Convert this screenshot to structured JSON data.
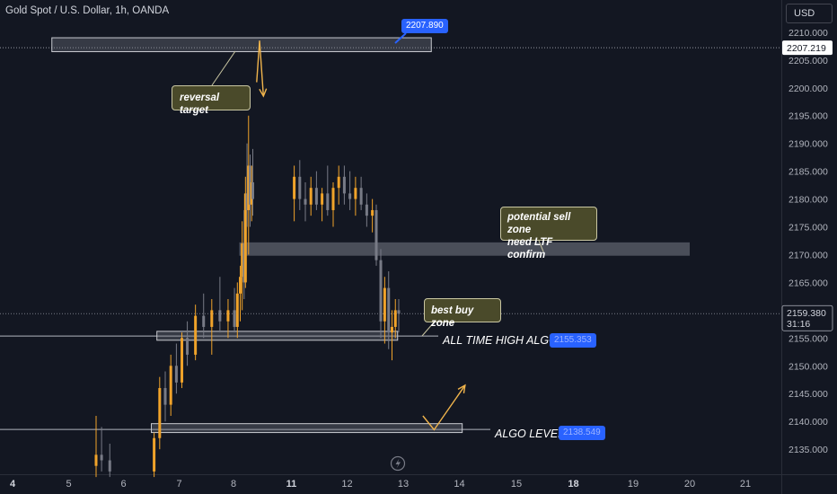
{
  "header": {
    "title": "Gold Spot / U.S. Dollar, 1h, OANDA"
  },
  "toolbar": {
    "currency_label": "USD"
  },
  "price_axis": {
    "current_price": "2159.380",
    "countdown": "31:16",
    "crosshair_price": "2207.219"
  },
  "annotations": {
    "reversal_target": "reversal target",
    "sell_zone_line1": "potential sell zone",
    "sell_zone_line2": "need LTF confirm",
    "best_buy_zone": "best buy zone",
    "ath_algo_label": "ALL TIME HIGH ALGO",
    "ath_algo_value": "2155.353",
    "algo_level_label": "ALGO LEVEL",
    "algo_level_value": "2138.549",
    "target_value": "2207.890"
  },
  "colors": {
    "background": "#131722",
    "candle_up": "#f0a32a",
    "candle_down": "#787b86",
    "zone_fill": "#434651",
    "arrow": "#f0b44c",
    "note_fill": "#4a4a2a",
    "accent": "#2962ff"
  },
  "icons": {
    "replay": "lightning-icon"
  },
  "chart_data": {
    "type": "candlestick",
    "title": "Gold Spot / U.S. Dollar, 1h, OANDA",
    "ylim": [
      2130.5,
      2214.5
    ],
    "y_ticks": [
      2135,
      2140,
      2145,
      2150,
      2155,
      2160,
      2165,
      2170,
      2175,
      2180,
      2185,
      2190,
      2195,
      2200,
      2205,
      2210
    ],
    "y_tick_labels": [
      "2135.000",
      "2140.000",
      "2145.000",
      "2150.000",
      "2155.000",
      "2160.000",
      "2165.000",
      "2170.000",
      "2175.000",
      "2180.000",
      "2185.000",
      "2190.000",
      "2195.000",
      "2200.000",
      "2205.000",
      "2210.000"
    ],
    "x_ticks": [
      {
        "label": "4",
        "day": 4,
        "bold": true
      },
      {
        "label": "5",
        "day": 5,
        "bold": false
      },
      {
        "label": "6",
        "day": 6,
        "bold": false
      },
      {
        "label": "7",
        "day": 7,
        "bold": false
      },
      {
        "label": "8",
        "day": 8,
        "bold": false
      },
      {
        "label": "11",
        "day": 11,
        "bold": true
      },
      {
        "label": "12",
        "day": 12,
        "bold": false
      },
      {
        "label": "13",
        "day": 13,
        "bold": false
      },
      {
        "label": "14",
        "day": 14,
        "bold": false
      },
      {
        "label": "15",
        "day": 15,
        "bold": false
      },
      {
        "label": "18",
        "day": 18,
        "bold": true
      },
      {
        "label": "19",
        "day": 19,
        "bold": false
      },
      {
        "label": "20",
        "day": 20,
        "bold": false
      },
      {
        "label": "21",
        "day": 21,
        "bold": false
      }
    ],
    "grid": false,
    "candles": [
      {
        "d": 5.5,
        "o": 2132,
        "h": 2141,
        "l": 2130,
        "c": 2134
      },
      {
        "d": 5.6,
        "o": 2134,
        "h": 2139,
        "l": 2131,
        "c": 2133
      },
      {
        "d": 5.75,
        "o": 2133,
        "h": 2136,
        "l": 2130,
        "c": 2131
      },
      {
        "d": 6.55,
        "o": 2131,
        "h": 2138,
        "l": 2130,
        "c": 2137
      },
      {
        "d": 6.65,
        "o": 2137,
        "h": 2148,
        "l": 2135,
        "c": 2146
      },
      {
        "d": 6.75,
        "o": 2146,
        "h": 2149,
        "l": 2140,
        "c": 2143
      },
      {
        "d": 6.85,
        "o": 2143,
        "h": 2152,
        "l": 2141,
        "c": 2150
      },
      {
        "d": 6.95,
        "o": 2150,
        "h": 2154,
        "l": 2145,
        "c": 2147
      },
      {
        "d": 7.05,
        "o": 2147,
        "h": 2156,
        "l": 2146,
        "c": 2155
      },
      {
        "d": 7.15,
        "o": 2155,
        "h": 2158,
        "l": 2150,
        "c": 2152
      },
      {
        "d": 7.3,
        "o": 2152,
        "h": 2161,
        "l": 2151,
        "c": 2159
      },
      {
        "d": 7.45,
        "o": 2159,
        "h": 2163,
        "l": 2155,
        "c": 2157
      },
      {
        "d": 7.6,
        "o": 2157,
        "h": 2162,
        "l": 2152,
        "c": 2160
      },
      {
        "d": 7.75,
        "o": 2160,
        "h": 2166,
        "l": 2156,
        "c": 2158
      },
      {
        "d": 7.9,
        "o": 2158,
        "h": 2162,
        "l": 2155,
        "c": 2160
      },
      {
        "d": 8.05,
        "o": 2160,
        "h": 2164,
        "l": 2156,
        "c": 2157
      },
      {
        "d": 8.2,
        "o": 2157,
        "h": 2165,
        "l": 2155,
        "c": 2163
      },
      {
        "d": 8.35,
        "o": 2163,
        "h": 2168,
        "l": 2158,
        "c": 2166
      },
      {
        "d": 8.45,
        "o": 2166,
        "h": 2176,
        "l": 2160,
        "c": 2172
      },
      {
        "d": 8.55,
        "o": 2172,
        "h": 2178,
        "l": 2162,
        "c": 2165
      },
      {
        "d": 8.62,
        "o": 2165,
        "h": 2184,
        "l": 2164,
        "c": 2181
      },
      {
        "d": 8.7,
        "o": 2181,
        "h": 2190,
        "l": 2175,
        "c": 2178
      },
      {
        "d": 8.78,
        "o": 2178,
        "h": 2195,
        "l": 2170,
        "c": 2186
      },
      {
        "d": 8.86,
        "o": 2186,
        "h": 2188,
        "l": 2175,
        "c": 2179
      },
      {
        "d": 8.94,
        "o": 2179,
        "h": 2186,
        "l": 2176,
        "c": 2183
      },
      {
        "d": 9.0,
        "o": 2183,
        "h": 2189,
        "l": 2177,
        "c": 2180
      },
      {
        "d": 11.05,
        "o": 2180,
        "h": 2186,
        "l": 2176,
        "c": 2184
      },
      {
        "d": 11.15,
        "o": 2184,
        "h": 2187,
        "l": 2178,
        "c": 2180
      },
      {
        "d": 11.25,
        "o": 2180,
        "h": 2183,
        "l": 2176,
        "c": 2179
      },
      {
        "d": 11.35,
        "o": 2179,
        "h": 2184,
        "l": 2177,
        "c": 2182
      },
      {
        "d": 11.45,
        "o": 2182,
        "h": 2185,
        "l": 2178,
        "c": 2179
      },
      {
        "d": 11.55,
        "o": 2179,
        "h": 2182,
        "l": 2176,
        "c": 2181
      },
      {
        "d": 11.65,
        "o": 2181,
        "h": 2186,
        "l": 2177,
        "c": 2178
      },
      {
        "d": 11.75,
        "o": 2178,
        "h": 2183,
        "l": 2175,
        "c": 2182
      },
      {
        "d": 11.85,
        "o": 2182,
        "h": 2186,
        "l": 2179,
        "c": 2184
      },
      {
        "d": 11.95,
        "o": 2184,
        "h": 2186,
        "l": 2179,
        "c": 2181
      },
      {
        "d": 12.05,
        "o": 2181,
        "h": 2185,
        "l": 2178,
        "c": 2180
      },
      {
        "d": 12.15,
        "o": 2180,
        "h": 2184,
        "l": 2177,
        "c": 2182
      },
      {
        "d": 12.25,
        "o": 2182,
        "h": 2184,
        "l": 2178,
        "c": 2179
      },
      {
        "d": 12.35,
        "o": 2179,
        "h": 2181,
        "l": 2175,
        "c": 2177
      },
      {
        "d": 12.45,
        "o": 2177,
        "h": 2180,
        "l": 2174,
        "c": 2178
      },
      {
        "d": 12.52,
        "o": 2178,
        "h": 2179,
        "l": 2168,
        "c": 2169
      },
      {
        "d": 12.6,
        "o": 2169,
        "h": 2171,
        "l": 2155,
        "c": 2158
      },
      {
        "d": 12.67,
        "o": 2158,
        "h": 2166,
        "l": 2154,
        "c": 2164
      },
      {
        "d": 12.74,
        "o": 2164,
        "h": 2167,
        "l": 2153,
        "c": 2156
      },
      {
        "d": 12.8,
        "o": 2156,
        "h": 2160,
        "l": 2151,
        "c": 2157
      },
      {
        "d": 12.86,
        "o": 2157,
        "h": 2162,
        "l": 2155,
        "c": 2160
      },
      {
        "d": 12.92,
        "o": 2160,
        "h": 2162,
        "l": 2156,
        "c": 2159.38
      }
    ],
    "zones": [
      {
        "name": "reversal-target-zone",
        "from_day": 4.7,
        "to_day": 13.5,
        "low": 2206.5,
        "high": 2209.0
      },
      {
        "name": "sell-zone",
        "from_day": 8.3,
        "to_day": 20.0,
        "low": 2169.8,
        "high": 2172.2
      },
      {
        "name": "ath-algo-zone",
        "from_day": 6.6,
        "to_day": 12.9,
        "low": 2154.6,
        "high": 2156.2
      },
      {
        "name": "algo-level-zone",
        "from_day": 6.5,
        "to_day": 14.05,
        "low": 2138.0,
        "high": 2139.6
      }
    ],
    "levels": [
      {
        "name": "crosshair",
        "price": 2207.219
      },
      {
        "name": "current",
        "price": 2159.38
      },
      {
        "name": "ath-algo",
        "price": 2155.353
      },
      {
        "name": "algo-level",
        "price": 2138.549
      }
    ],
    "arrows": [
      {
        "name": "arrow-up-target",
        "points": [
          [
            9.2,
            2201.0
          ],
          [
            9.35,
            2208.5
          ],
          [
            9.55,
            2198.5
          ]
        ]
      },
      {
        "name": "arrow-algo-bounce",
        "points": [
          [
            13.35,
            2141.0
          ],
          [
            13.55,
            2138.5
          ],
          [
            14.1,
            2146.5
          ]
        ]
      }
    ]
  }
}
